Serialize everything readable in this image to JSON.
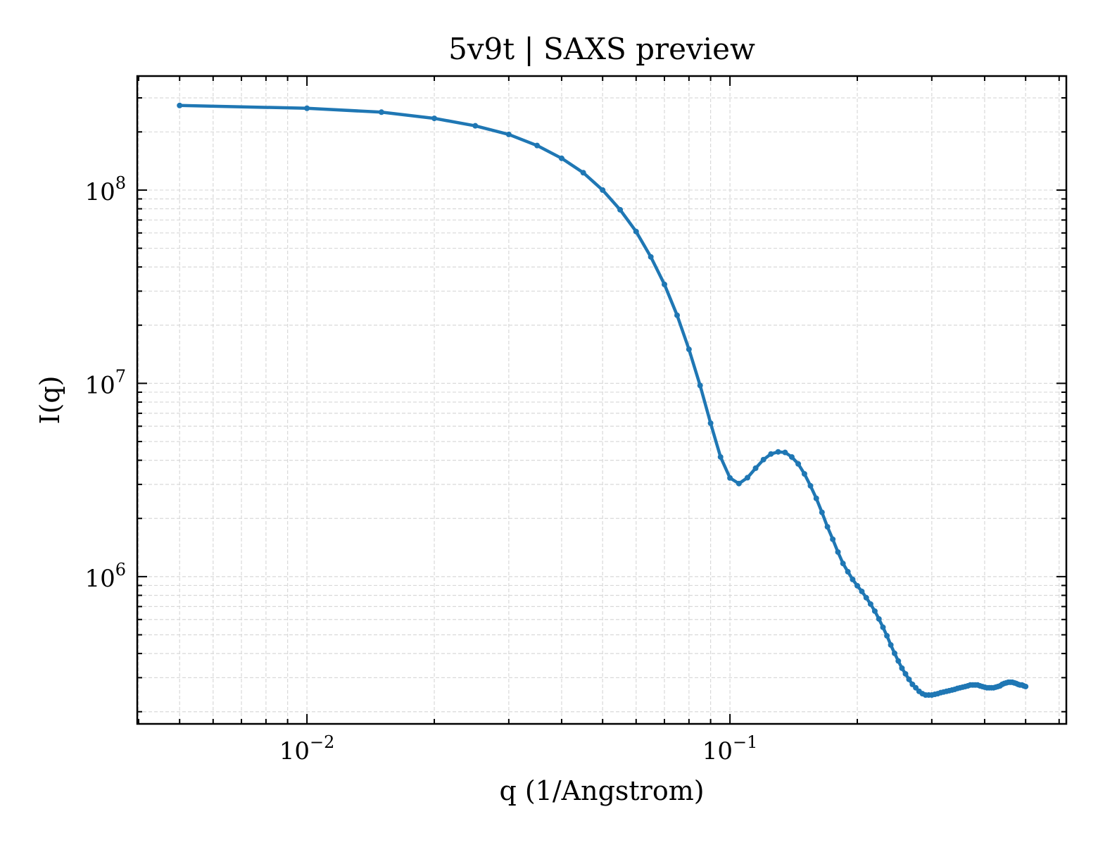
{
  "chart_data": {
    "type": "line",
    "title": "5v9t | SAXS preview",
    "xlabel": "q (1/Angstrom)",
    "ylabel": "I(q)",
    "xscale": "log",
    "yscale": "log",
    "grid": true,
    "minor_grid": true,
    "color": "#1f77b4",
    "markers": true,
    "xlim": [
      0.00397,
      0.624
    ],
    "ylim": [
      173000,
      389000000
    ],
    "xticks": [
      {
        "value": 0.01,
        "label": "10",
        "exponent": "−2"
      },
      {
        "value": 0.1,
        "label": "10",
        "exponent": "−1"
      }
    ],
    "yticks": [
      {
        "value": 1000000,
        "label": "10",
        "exponent": "6"
      },
      {
        "value": 10000000,
        "label": "10",
        "exponent": "7"
      },
      {
        "value": 100000000,
        "label": "10",
        "exponent": "8"
      }
    ],
    "x": [
      0.005,
      0.01,
      0.015,
      0.02,
      0.025,
      0.03,
      0.035,
      0.04,
      0.045,
      0.05,
      0.055,
      0.06,
      0.065,
      0.07,
      0.075,
      0.08,
      0.085,
      0.09,
      0.095,
      0.1,
      0.105,
      0.11,
      0.115,
      0.12,
      0.125,
      0.13,
      0.135,
      0.14,
      0.145,
      0.15,
      0.155,
      0.16,
      0.165,
      0.17,
      0.175,
      0.18,
      0.185,
      0.19,
      0.195,
      0.2,
      0.205,
      0.21,
      0.215,
      0.22,
      0.225,
      0.23,
      0.235,
      0.24,
      0.245,
      0.25,
      0.255,
      0.26,
      0.265,
      0.27,
      0.275,
      0.28,
      0.285,
      0.29,
      0.295,
      0.3,
      0.305,
      0.31,
      0.315,
      0.32,
      0.325,
      0.33,
      0.335,
      0.34,
      0.345,
      0.35,
      0.355,
      0.36,
      0.365,
      0.37,
      0.375,
      0.38,
      0.385,
      0.39,
      0.395,
      0.4,
      0.405,
      0.41,
      0.415,
      0.42,
      0.425,
      0.43,
      0.435,
      0.44,
      0.445,
      0.45,
      0.455,
      0.46,
      0.465,
      0.47,
      0.475,
      0.48,
      0.485,
      0.49,
      0.495,
      0.5
    ],
    "values": [
      274000000,
      265000000,
      253000000,
      235000000,
      215000000,
      194000000,
      170000000,
      146000000,
      123000000,
      100000000,
      79100000,
      61000000,
      45100000,
      32500000,
      22500000,
      15000000,
      9750000,
      6220000,
      4160000,
      3240000,
      3030000,
      3250000,
      3640000,
      4030000,
      4310000,
      4420000,
      4390000,
      4160000,
      3830000,
      3400000,
      2950000,
      2540000,
      2150000,
      1810000,
      1560000,
      1340000,
      1170000,
      1060000,
      967000,
      897000,
      838000,
      778000,
      721000,
      663000,
      604000,
      547000,
      494000,
      443000,
      401000,
      366000,
      336000,
      314000,
      294000,
      277000,
      266000,
      255000,
      248000,
      244000,
      244000,
      244000,
      246000,
      248000,
      251000,
      253000,
      255000,
      257000,
      259000,
      261000,
      264000,
      266000,
      268000,
      270000,
      272000,
      275000,
      275000,
      275000,
      275000,
      272000,
      270000,
      268000,
      266000,
      266000,
      266000,
      266000,
      268000,
      270000,
      272000,
      277000,
      280000,
      282000,
      284000,
      284000,
      284000,
      282000,
      280000,
      277000,
      275000,
      275000,
      272000,
      270000
    ]
  }
}
